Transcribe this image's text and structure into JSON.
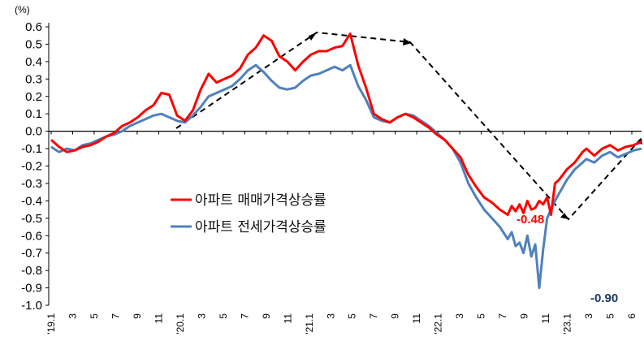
{
  "chart_data": {
    "type": "line",
    "unit_label": "(%)",
    "ylim": [
      -1.0,
      0.6
    ],
    "y_ticks": [
      "0.6",
      "0.5",
      "0.4",
      "0.3",
      "0.2",
      "0.1",
      "0.0",
      "-0.1",
      "-0.2",
      "-0.3",
      "-0.4",
      "-0.5",
      "-0.6",
      "-0.7",
      "-0.8",
      "-0.9",
      "-1.0"
    ],
    "x_ticks": [
      "'19.1",
      "3",
      "5",
      "7",
      "9",
      "11",
      "'20.1",
      "3",
      "5",
      "7",
      "9",
      "11",
      "'21.1",
      "3",
      "5",
      "7",
      "9",
      "11",
      "'22.1",
      "3",
      "5",
      "7",
      "9",
      "11",
      "'23.1",
      "3",
      "5",
      "6"
    ],
    "legend": {
      "placement": "center-left"
    },
    "series": [
      {
        "name": "아파트 매매가격상승률",
        "color": "#ff0000",
        "x": [
          0,
          2,
          4,
          6,
          8,
          10,
          12,
          14,
          16,
          18,
          20,
          22,
          24,
          26,
          28,
          30,
          32,
          34,
          36,
          38,
          40,
          42,
          44,
          46,
          48,
          50,
          52,
          54,
          56,
          58,
          60,
          62,
          64,
          66,
          68,
          70,
          72,
          74,
          76,
          78,
          80,
          82,
          84,
          86,
          88,
          90,
          92,
          94,
          96,
          98,
          100,
          102,
          104,
          106,
          108,
          110,
          112,
          114,
          116,
          117,
          118,
          119,
          120,
          121,
          122,
          123,
          124,
          125,
          126,
          127,
          128,
          129,
          130,
          131,
          132,
          133,
          134,
          135,
          136,
          138,
          140,
          142,
          144,
          146,
          148,
          150
        ],
        "values": [
          -0.05,
          -0.09,
          -0.12,
          -0.11,
          -0.09,
          -0.08,
          -0.06,
          -0.03,
          -0.01,
          0.03,
          0.05,
          0.08,
          0.12,
          0.15,
          0.22,
          0.21,
          0.09,
          0.06,
          0.12,
          0.24,
          0.33,
          0.28,
          0.3,
          0.32,
          0.36,
          0.44,
          0.48,
          0.55,
          0.52,
          0.43,
          0.4,
          0.35,
          0.4,
          0.44,
          0.46,
          0.46,
          0.48,
          0.49,
          0.56,
          0.38,
          0.25,
          0.1,
          0.07,
          0.05,
          0.08,
          0.1,
          0.08,
          0.05,
          0.02,
          -0.02,
          -0.05,
          -0.1,
          -0.15,
          -0.25,
          -0.32,
          -0.38,
          -0.41,
          -0.45,
          -0.48,
          -0.43,
          -0.46,
          -0.42,
          -0.47,
          -0.4,
          -0.45,
          -0.44,
          -0.4,
          -0.42,
          -0.38,
          -0.48,
          -0.3,
          -0.28,
          -0.25,
          -0.22,
          -0.2,
          -0.18,
          -0.15,
          -0.12,
          -0.1,
          -0.14,
          -0.1,
          -0.08,
          -0.11,
          -0.09,
          -0.08,
          -0.06
        ],
        "end_label": "-0.48"
      },
      {
        "name": "아파트 전세가격상승률",
        "color": "#4f81bd",
        "x": [
          0,
          2,
          4,
          6,
          8,
          10,
          12,
          14,
          16,
          18,
          20,
          22,
          24,
          26,
          28,
          30,
          32,
          34,
          36,
          38,
          40,
          42,
          44,
          46,
          48,
          50,
          52,
          54,
          56,
          58,
          60,
          62,
          64,
          66,
          68,
          70,
          72,
          74,
          76,
          78,
          80,
          82,
          84,
          86,
          88,
          90,
          92,
          94,
          96,
          98,
          100,
          102,
          104,
          106,
          108,
          110,
          112,
          114,
          116,
          117,
          118,
          119,
          120,
          121,
          122,
          123,
          124,
          125,
          126,
          127,
          128,
          129,
          130,
          131,
          132,
          133,
          134,
          135,
          136,
          138,
          140,
          142,
          144,
          146,
          148,
          150
        ],
        "values": [
          -0.09,
          -0.12,
          -0.1,
          -0.11,
          -0.08,
          -0.07,
          -0.05,
          -0.03,
          -0.02,
          0.0,
          0.03,
          0.05,
          0.07,
          0.09,
          0.1,
          0.08,
          0.06,
          0.05,
          0.09,
          0.14,
          0.2,
          0.22,
          0.24,
          0.26,
          0.3,
          0.35,
          0.38,
          0.34,
          0.29,
          0.25,
          0.24,
          0.25,
          0.29,
          0.32,
          0.33,
          0.35,
          0.37,
          0.35,
          0.38,
          0.26,
          0.18,
          0.08,
          0.06,
          0.05,
          0.08,
          0.1,
          0.09,
          0.06,
          0.03,
          -0.01,
          -0.05,
          -0.1,
          -0.18,
          -0.3,
          -0.38,
          -0.45,
          -0.5,
          -0.55,
          -0.62,
          -0.58,
          -0.66,
          -0.64,
          -0.7,
          -0.6,
          -0.72,
          -0.65,
          -0.9,
          -0.68,
          -0.5,
          -0.45,
          -0.4,
          -0.36,
          -0.32,
          -0.28,
          -0.25,
          -0.22,
          -0.2,
          -0.18,
          -0.16,
          -0.18,
          -0.14,
          -0.12,
          -0.15,
          -0.13,
          -0.11,
          -0.1
        ],
        "end_label": "-0.90"
      }
    ],
    "trend_lines": {
      "color": "#000000",
      "style": "dashed"
    }
  }
}
